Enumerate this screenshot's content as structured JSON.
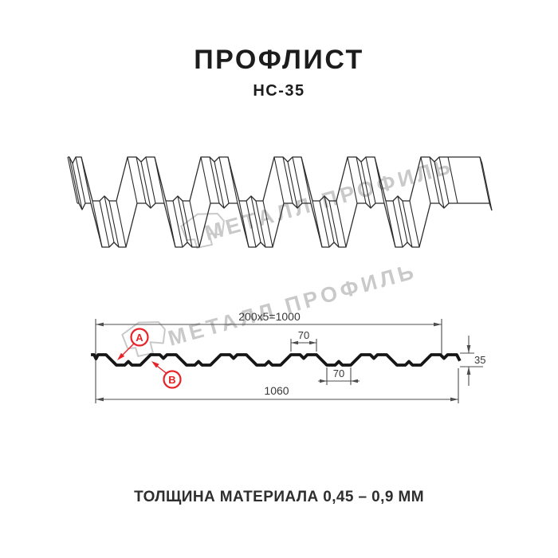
{
  "header": {
    "title": "ПРОФЛИСТ",
    "subtitle": "НС-35"
  },
  "footer": {
    "text": "ТОЛЩИНА МАТЕРИАЛА 0,45 – 0,9 ММ"
  },
  "watermark": {
    "text": "МЕТАЛЛ ПРОФИЛЬ",
    "logo": "metal-profil-logo",
    "color": "#c9c9c9"
  },
  "drawing": {
    "profile_name": "НС-35",
    "dimensions": {
      "coverage": "200x5=1000",
      "overall_width": "1060",
      "rib_top_width": "70",
      "rib_bottom_width": "70",
      "height": "35"
    },
    "callouts": {
      "a": "A",
      "b": "B"
    },
    "colors": {
      "accent": "#e62429",
      "line": "#4d4d4d",
      "ink": "#161616",
      "watermark": "#c9c9c9"
    }
  }
}
